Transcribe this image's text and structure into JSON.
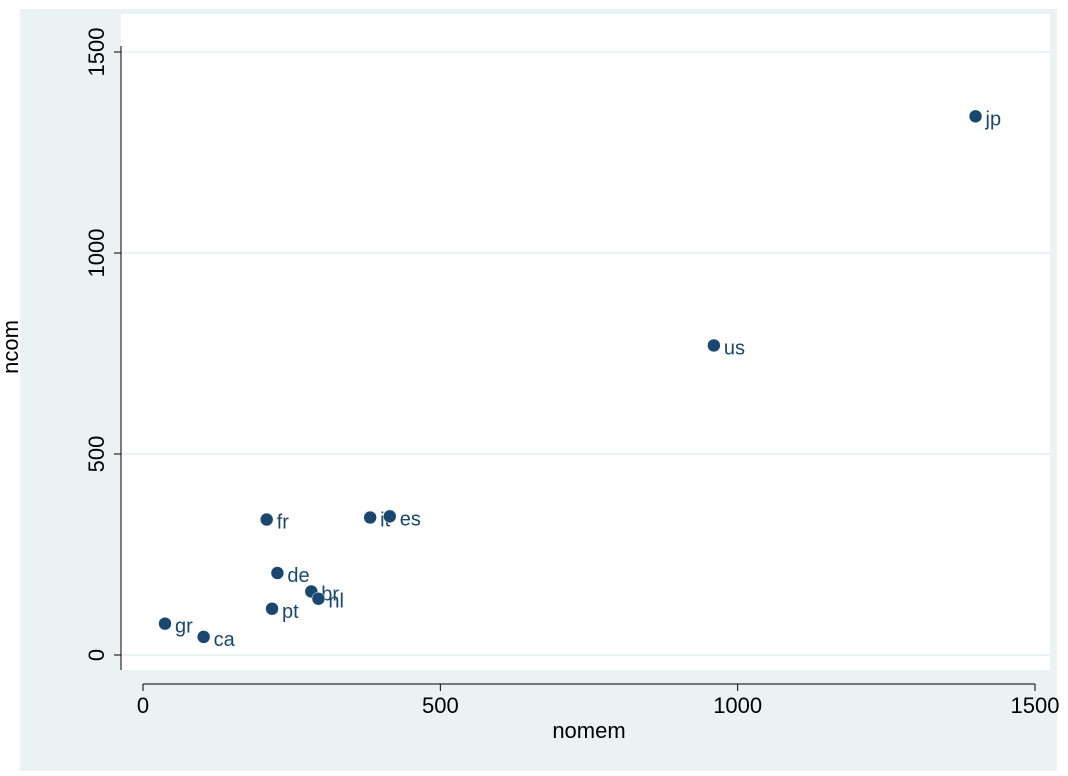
{
  "chart_data": {
    "type": "scatter",
    "title": "",
    "xlabel": "nomem",
    "ylabel": "ncom",
    "xlim": [
      0,
      1500
    ],
    "ylim": [
      0,
      1500
    ],
    "xticks": [
      0,
      500,
      1000,
      1500
    ],
    "yticks": [
      0,
      500,
      1000,
      1500
    ],
    "grid": true,
    "points": [
      {
        "label": "jp",
        "x": 1400,
        "y": 1340
      },
      {
        "label": "us",
        "x": 960,
        "y": 770
      },
      {
        "label": "fr",
        "x": 208,
        "y": 337
      },
      {
        "label": "it",
        "x": 382,
        "y": 342
      },
      {
        "label": "es",
        "x": 415,
        "y": 345
      },
      {
        "label": "de",
        "x": 226,
        "y": 204
      },
      {
        "label": "br",
        "x": 283,
        "y": 158
      },
      {
        "label": "nl",
        "x": 295,
        "y": 140
      },
      {
        "label": "pt",
        "x": 217,
        "y": 115
      },
      {
        "label": "gr",
        "x": 37,
        "y": 78
      },
      {
        "label": "ca",
        "x": 102,
        "y": 45
      }
    ],
    "colors": {
      "background": "#eaf2f3",
      "plot_area": "#ffffff",
      "marker": "#1a476f",
      "grid": "#eaf2f3",
      "text": "#000000"
    }
  }
}
